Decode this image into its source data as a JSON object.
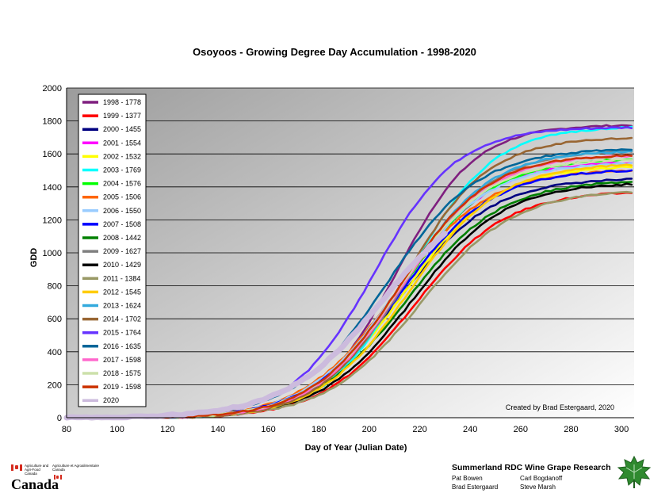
{
  "chart_data": {
    "type": "line",
    "title": "Osoyoos - Growing Degree Day Accumulation - 1998-2020",
    "xlabel": "Day of Year (Julian Date)",
    "ylabel": "GDD",
    "xlim": [
      80,
      305
    ],
    "ylim": [
      0,
      2000
    ],
    "xticks": [
      80,
      100,
      120,
      140,
      160,
      180,
      200,
      220,
      240,
      260,
      280,
      300
    ],
    "yticks": [
      0,
      200,
      400,
      600,
      800,
      1000,
      1200,
      1400,
      1600,
      1800,
      2000
    ],
    "grid": "horizontal",
    "legend_position": "top-left",
    "annotation": "Created by Brad Estergaard, 2020",
    "series": [
      {
        "name": "1998 - 1778",
        "color": "#7f1f7f",
        "final": 1778,
        "start": 115,
        "mid": 211,
        "slope": 1.18
      },
      {
        "name": "1999 - 1377",
        "color": "#ff0000",
        "final": 1377,
        "start": 122,
        "mid": 218,
        "slope": 1.0
      },
      {
        "name": "2000 - 1455",
        "color": "#000080",
        "final": 1455,
        "start": 118,
        "mid": 212,
        "slope": 1.0
      },
      {
        "name": "2001 - 1554",
        "color": "#ff00ff",
        "final": 1554,
        "start": 117,
        "mid": 212,
        "slope": 1.04
      },
      {
        "name": "2002 - 1532",
        "color": "#ffff00",
        "final": 1532,
        "start": 119,
        "mid": 214,
        "slope": 1.0
      },
      {
        "name": "2003 - 1769",
        "color": "#00ffff",
        "final": 1769,
        "start": 116,
        "mid": 216,
        "slope": 1.1
      },
      {
        "name": "2004 - 1576",
        "color": "#00ff00",
        "final": 1576,
        "start": 114,
        "mid": 213,
        "slope": 1.02
      },
      {
        "name": "2005 - 1506",
        "color": "#ff6600",
        "final": 1506,
        "start": 115,
        "mid": 210,
        "slope": 1.0
      },
      {
        "name": "2006 - 1550",
        "color": "#99ccff",
        "final": 1550,
        "start": 116,
        "mid": 211,
        "slope": 1.02
      },
      {
        "name": "2007 - 1508",
        "color": "#0000ff",
        "final": 1508,
        "start": 117,
        "mid": 212,
        "slope": 1.0
      },
      {
        "name": "2008 - 1442",
        "color": "#008000",
        "final": 1442,
        "start": 120,
        "mid": 215,
        "slope": 0.98
      },
      {
        "name": "2009 - 1627",
        "color": "#808080",
        "final": 1627,
        "start": 116,
        "mid": 214,
        "slope": 1.05
      },
      {
        "name": "2010 - 1429",
        "color": "#000000",
        "final": 1429,
        "start": 120,
        "mid": 217,
        "slope": 1.0
      },
      {
        "name": "2011 - 1384",
        "color": "#999966",
        "final": 1384,
        "start": 122,
        "mid": 220,
        "slope": 0.98
      },
      {
        "name": "2012 - 1545",
        "color": "#ffcc00",
        "final": 1545,
        "start": 118,
        "mid": 216,
        "slope": 1.02
      },
      {
        "name": "2013 - 1624",
        "color": "#33aadd",
        "final": 1624,
        "start": 116,
        "mid": 213,
        "slope": 1.06
      },
      {
        "name": "2014 - 1702",
        "color": "#996633",
        "final": 1702,
        "start": 115,
        "mid": 214,
        "slope": 1.1
      },
      {
        "name": "2015 - 1764",
        "color": "#6633ff",
        "final": 1764,
        "start": 112,
        "mid": 202,
        "slope": 1.12
      },
      {
        "name": "2016 - 1635",
        "color": "#006699",
        "final": 1635,
        "start": 98,
        "mid": 207,
        "slope": 1.0
      },
      {
        "name": "2017 - 1598",
        "color": "#ff66cc",
        "final": 1598,
        "start": 117,
        "mid": 213,
        "slope": 1.04
      },
      {
        "name": "2018 - 1575",
        "color": "#cce0aa",
        "final": 1575,
        "start": 116,
        "mid": 212,
        "slope": 1.04
      },
      {
        "name": "2019 - 1598",
        "color": "#cc3300",
        "final": 1598,
        "start": 115,
        "mid": 212,
        "slope": 1.05
      },
      {
        "name": "2020",
        "color": "#ccbbdd",
        "final": 1420,
        "start": 80,
        "mid": 205,
        "slope": 0.95,
        "end_day": 230
      }
    ]
  },
  "footer": {
    "dept_en": "Agriculture and Agri-Food Canada",
    "dept_fr": "Agriculture et Agroalimentaire Canada",
    "wordmark": "Canada",
    "org": "Summerland RDC Wine Grape Research",
    "people": [
      "Pat Bowen",
      "Carl Bogdanoff",
      "Brad Estergaard",
      "Steve Marsh"
    ]
  }
}
